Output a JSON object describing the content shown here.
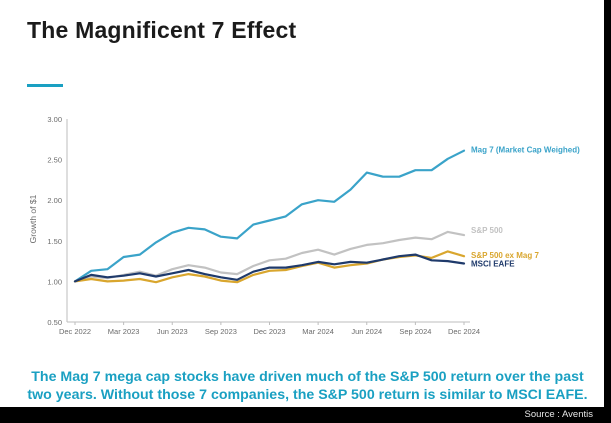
{
  "header": {
    "title": "The Magnificent 7 Effect"
  },
  "caption": "The Mag 7 mega cap stocks have driven much of the S&P 500 return over the past two years. Without those 7 companies, the S&P 500 return is similar to MSCI EAFE.",
  "source": "Source : Aventis",
  "colors": {
    "accent": "#1aa0c2",
    "axis": "#bdbdbd",
    "tick_text": "#6b6b6b"
  },
  "chart_data": {
    "type": "line",
    "title": "",
    "xlabel": "",
    "ylabel": "Growth of $1",
    "ylim": [
      0.5,
      3.0
    ],
    "yticks": [
      "3.00",
      "2.50",
      "2.00",
      "1.50",
      "1.00",
      "0.50"
    ],
    "ytick_values": [
      3.0,
      2.5,
      2.0,
      1.5,
      1.0,
      0.5
    ],
    "x": [
      "Dec 2022",
      "Jan 2023",
      "Feb 2023",
      "Mar 2023",
      "Apr 2023",
      "May 2023",
      "Jun 2023",
      "Jul 2023",
      "Aug 2023",
      "Sep 2023",
      "Oct 2023",
      "Nov 2023",
      "Dec 2023",
      "Jan 2024",
      "Feb 2024",
      "Mar 2024",
      "Apr 2024",
      "May 2024",
      "Jun 2024",
      "Jul 2024",
      "Aug 2024",
      "Sep 2024",
      "Oct 2024",
      "Nov 2024",
      "Dec 2024"
    ],
    "xticks": [
      "Dec 2022",
      "Mar 2023",
      "Jun 2023",
      "Sep 2023",
      "Dec 2023",
      "Mar 2024",
      "Jun 2024",
      "Sep 2024",
      "Dec 2024"
    ],
    "xtick_indices": [
      0,
      3,
      6,
      9,
      12,
      15,
      18,
      21,
      24
    ],
    "legend_placement": "right end of each line",
    "series": [
      {
        "name": "Mag 7 (Market Cap Weighed)",
        "color": "#3aa3c9",
        "values": [
          1.0,
          1.13,
          1.15,
          1.3,
          1.33,
          1.48,
          1.6,
          1.66,
          1.64,
          1.55,
          1.53,
          1.7,
          1.75,
          1.8,
          1.95,
          2.0,
          1.98,
          2.13,
          2.34,
          2.29,
          2.29,
          2.37,
          2.37,
          2.51,
          2.61
        ]
      },
      {
        "name": "S&P 500",
        "color": "#c2c2c2",
        "values": [
          1.0,
          1.06,
          1.04,
          1.08,
          1.12,
          1.07,
          1.15,
          1.2,
          1.17,
          1.11,
          1.09,
          1.19,
          1.26,
          1.28,
          1.35,
          1.39,
          1.33,
          1.4,
          1.45,
          1.47,
          1.51,
          1.54,
          1.52,
          1.61,
          1.57
        ]
      },
      {
        "name": "S&P 500 ex Mag 7",
        "color": "#d9a62e",
        "values": [
          1.0,
          1.03,
          1.0,
          1.01,
          1.03,
          0.99,
          1.05,
          1.09,
          1.06,
          1.01,
          0.99,
          1.08,
          1.13,
          1.14,
          1.19,
          1.23,
          1.17,
          1.2,
          1.22,
          1.27,
          1.3,
          1.32,
          1.29,
          1.37,
          1.31
        ]
      },
      {
        "name": "MSCI EAFE",
        "color": "#1f3a6b",
        "values": [
          1.0,
          1.08,
          1.05,
          1.07,
          1.1,
          1.06,
          1.1,
          1.14,
          1.09,
          1.05,
          1.02,
          1.12,
          1.17,
          1.17,
          1.2,
          1.24,
          1.21,
          1.24,
          1.23,
          1.27,
          1.31,
          1.33,
          1.26,
          1.25,
          1.22
        ]
      }
    ]
  }
}
